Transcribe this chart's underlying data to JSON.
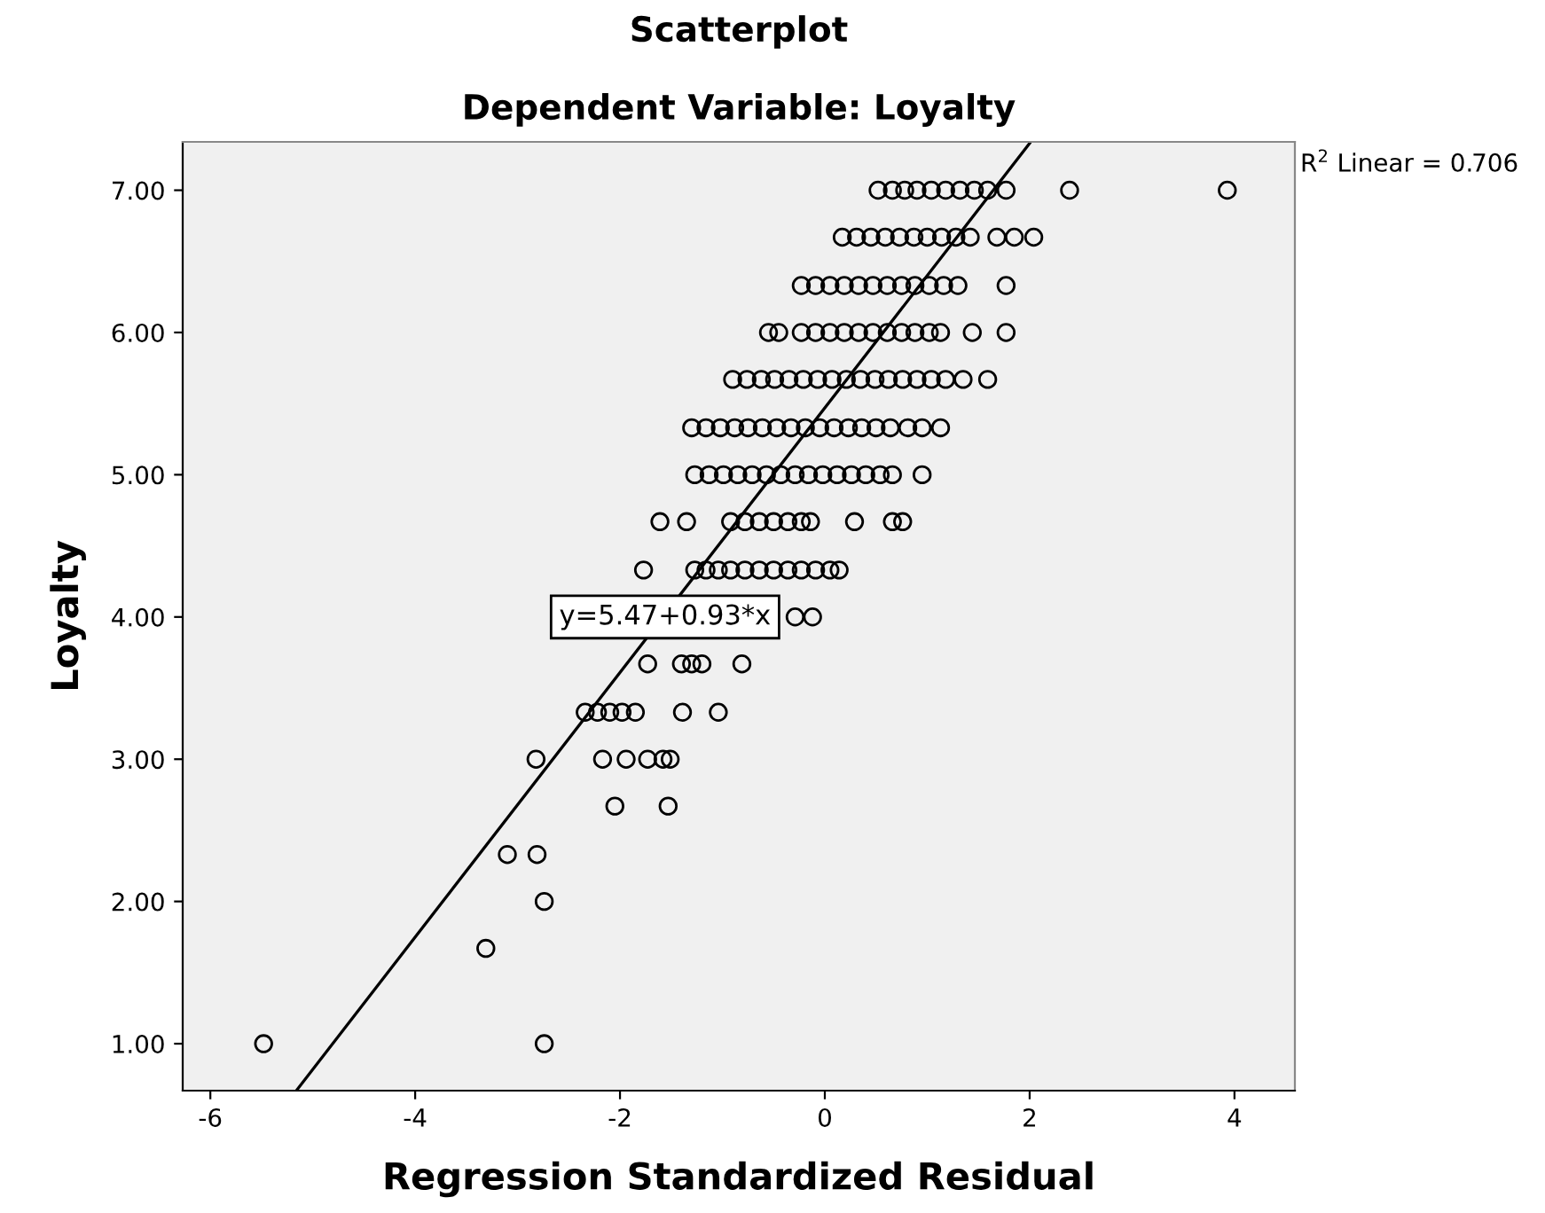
{
  "chart_data": {
    "type": "scatter",
    "title": "Scatterplot",
    "subtitle": "Dependent Variable: Loyalty",
    "xlabel": "Regression Standardized Residual",
    "ylabel": "Loyalty",
    "xlim": [
      -6.27,
      4.59
    ],
    "ylim": [
      0.67,
      7.34
    ],
    "xticks": [
      -6,
      -4,
      -2,
      0,
      2,
      4
    ],
    "yticks": [
      {
        "value": 1,
        "label": "1.00"
      },
      {
        "value": 2,
        "label": "2.00"
      },
      {
        "value": 3,
        "label": "3.00"
      },
      {
        "value": 4,
        "label": "4.00"
      },
      {
        "value": 5,
        "label": "5.00"
      },
      {
        "value": 6,
        "label": "6.00"
      },
      {
        "value": 7,
        "label": "7.00"
      }
    ],
    "grid": false,
    "legend": false,
    "series": [
      {
        "marker": "circle",
        "color": "#000000",
        "x": [
          0.52,
          0.66,
          0.78,
          0.9,
          1.04,
          1.18,
          1.32,
          1.46,
          1.59,
          1.77,
          2.39,
          3.93,
          0.17,
          0.31,
          0.45,
          0.59,
          0.73,
          0.87,
          1.0,
          1.14,
          1.28,
          1.42,
          1.68,
          1.85,
          2.04,
          -0.23,
          -0.09,
          0.05,
          0.19,
          0.33,
          0.47,
          0.61,
          0.75,
          0.88,
          1.02,
          1.16,
          1.3,
          1.77,
          -0.55,
          -0.45,
          -0.23,
          -0.09,
          0.05,
          0.19,
          0.33,
          0.47,
          0.61,
          0.75,
          0.88,
          1.02,
          1.13,
          1.44,
          1.77,
          -0.9,
          -0.76,
          -0.62,
          -0.49,
          -0.35,
          -0.21,
          -0.07,
          0.07,
          0.21,
          0.35,
          0.49,
          0.62,
          0.76,
          0.9,
          1.04,
          1.18,
          1.35,
          1.59,
          -1.3,
          -1.16,
          -1.02,
          -0.88,
          -0.75,
          -0.61,
          -0.47,
          -0.33,
          -0.19,
          -0.05,
          0.09,
          0.23,
          0.36,
          0.5,
          0.64,
          0.81,
          0.95,
          1.13,
          -1.27,
          -1.13,
          -0.99,
          -0.85,
          -0.71,
          -0.57,
          -0.43,
          -0.29,
          -0.16,
          -0.02,
          0.12,
          0.26,
          0.4,
          0.54,
          0.66,
          0.95,
          -1.61,
          -1.35,
          -0.92,
          -0.78,
          -0.64,
          -0.5,
          -0.36,
          -0.23,
          -0.14,
          0.29,
          0.66,
          0.76,
          -1.77,
          -1.27,
          -1.16,
          -1.04,
          -0.92,
          -0.78,
          -0.64,
          -0.5,
          -0.36,
          -0.23,
          -0.09,
          0.05,
          0.14,
          -0.29,
          -0.12,
          -1.73,
          -1.4,
          -1.3,
          -1.2,
          -0.81,
          -2.34,
          -2.22,
          -2.1,
          -1.98,
          -1.85,
          -1.39,
          -1.04,
          -2.82,
          -2.17,
          -1.94,
          -1.73,
          -1.58,
          -1.51,
          -2.05,
          -1.53,
          -3.1,
          -2.81,
          -2.74,
          -3.31,
          -5.48,
          -2.74
        ],
        "values": [
          7,
          7,
          7,
          7,
          7,
          7,
          7,
          7,
          7,
          7,
          7,
          7,
          6.67,
          6.67,
          6.67,
          6.67,
          6.67,
          6.67,
          6.67,
          6.67,
          6.67,
          6.67,
          6.67,
          6.67,
          6.67,
          6.33,
          6.33,
          6.33,
          6.33,
          6.33,
          6.33,
          6.33,
          6.33,
          6.33,
          6.33,
          6.33,
          6.33,
          6.33,
          6,
          6,
          6,
          6,
          6,
          6,
          6,
          6,
          6,
          6,
          6,
          6,
          6,
          6,
          6,
          5.67,
          5.67,
          5.67,
          5.67,
          5.67,
          5.67,
          5.67,
          5.67,
          5.67,
          5.67,
          5.67,
          5.67,
          5.67,
          5.67,
          5.67,
          5.67,
          5.67,
          5.67,
          5.33,
          5.33,
          5.33,
          5.33,
          5.33,
          5.33,
          5.33,
          5.33,
          5.33,
          5.33,
          5.33,
          5.33,
          5.33,
          5.33,
          5.33,
          5.33,
          5.33,
          5.33,
          5,
          5,
          5,
          5,
          5,
          5,
          5,
          5,
          5,
          5,
          5,
          5,
          5,
          5,
          5,
          5,
          4.67,
          4.67,
          4.67,
          4.67,
          4.67,
          4.67,
          4.67,
          4.67,
          4.67,
          4.67,
          4.67,
          4.67,
          4.33,
          4.33,
          4.33,
          4.33,
          4.33,
          4.33,
          4.33,
          4.33,
          4.33,
          4.33,
          4.33,
          4.33,
          4.33,
          4,
          4,
          3.67,
          3.67,
          3.67,
          3.67,
          3.67,
          3.33,
          3.33,
          3.33,
          3.33,
          3.33,
          3.33,
          3.33,
          3,
          3,
          3,
          3,
          3,
          3,
          2.67,
          2.67,
          2.33,
          2.33,
          2,
          1.67,
          1,
          1
        ]
      },
      {
        "type": "line",
        "color": "#000000",
        "marker": "none",
        "line_style": "solid",
        "x": [
          -5.15,
          2.0
        ],
        "values": [
          0.68,
          7.33
        ]
      }
    ],
    "annotations": [
      "R$^{2}$ Linear = 0.706",
      {
        "text": "y=5.47+0.93*x",
        "x": -1.56,
        "y": 4.0
      }
    ]
  }
}
